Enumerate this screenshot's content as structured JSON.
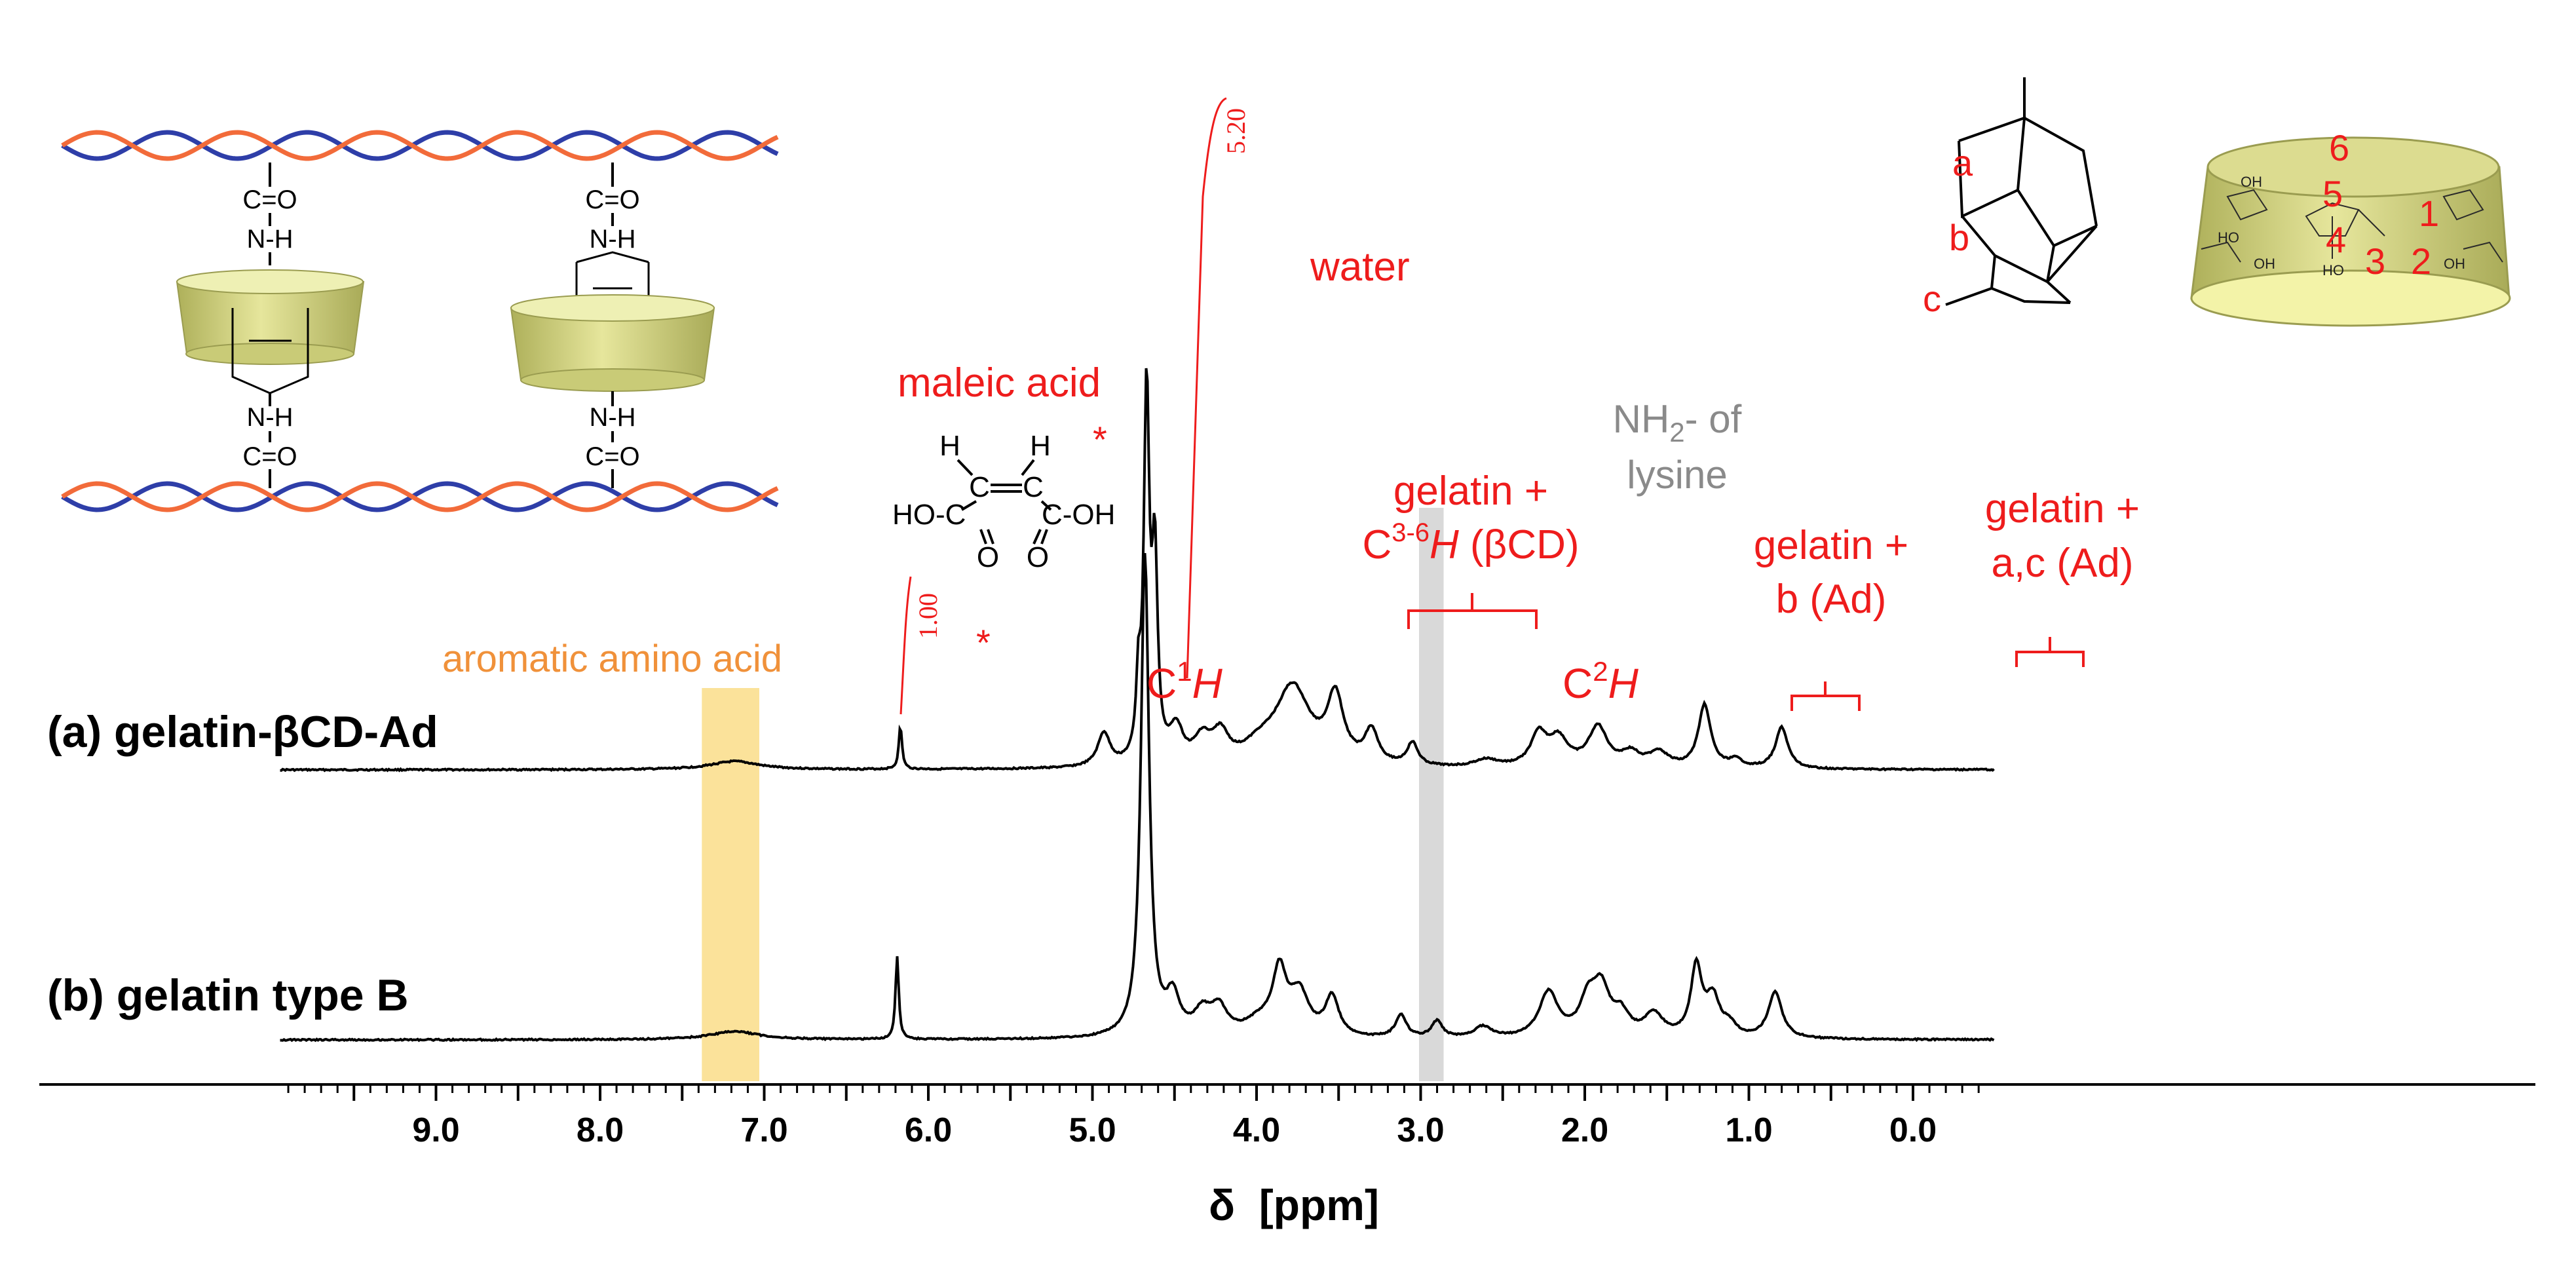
{
  "colors": {
    "spectrum": "#000000",
    "annotation": "#ee1c1c",
    "aromatic_label": "#f0913a",
    "aromatic_band": "#fbe29a",
    "lysine_band": "#d9d9d9",
    "lysine_label": "#8a8a8a",
    "strand_blue": "#2e3ea8",
    "strand_orange": "#f26b3a",
    "cyclodextrin": "#d8d884"
  },
  "chart_data": {
    "type": "line",
    "title": "",
    "xlabel": "δ  [ppm]",
    "ylabel": "",
    "xlim": [
      9.95,
      -0.5
    ],
    "x_reversed": true,
    "grid": false,
    "legend": "none",
    "tick_labels": [
      "9.0",
      "8.0",
      "7.0",
      "6.0",
      "5.0",
      "4.0",
      "3.0",
      "2.0",
      "1.0",
      "0.0"
    ],
    "tick_values": [
      9.0,
      8.0,
      7.0,
      6.0,
      5.0,
      4.0,
      3.0,
      2.0,
      1.0,
      0.0
    ],
    "series": [
      {
        "name": "(a) gelatin-βCD-Ad",
        "baseline_offset": 1,
        "peaks": [
          {
            "ppm": 7.18,
            "height": 0.11,
            "width": 0.18
          },
          {
            "ppm": 6.17,
            "height": 0.57,
            "width": 0.012
          },
          {
            "ppm": 4.93,
            "height": 0.44,
            "width": 0.045
          },
          {
            "ppm": 4.72,
            "height": 0.92,
            "width": 0.015
          },
          {
            "ppm": 4.67,
            "height": 4.9,
            "width": 0.02
          },
          {
            "ppm": 4.62,
            "height": 2.6,
            "width": 0.02
          },
          {
            "ppm": 4.49,
            "height": 0.46,
            "width": 0.05
          },
          {
            "ppm": 4.33,
            "height": 0.32,
            "width": 0.06
          },
          {
            "ppm": 4.22,
            "height": 0.38,
            "width": 0.06
          },
          {
            "ppm": 3.98,
            "height": 0.2,
            "width": 0.12
          },
          {
            "ppm": 3.78,
            "height": 1.04,
            "width": 0.13
          },
          {
            "ppm": 3.52,
            "height": 0.86,
            "width": 0.06
          },
          {
            "ppm": 3.3,
            "height": 0.44,
            "width": 0.05
          },
          {
            "ppm": 3.05,
            "height": 0.3,
            "width": 0.04
          },
          {
            "ppm": 2.6,
            "height": 0.1,
            "width": 0.09
          },
          {
            "ppm": 2.28,
            "height": 0.42,
            "width": 0.06
          },
          {
            "ppm": 2.16,
            "height": 0.36,
            "width": 0.07
          },
          {
            "ppm": 1.92,
            "height": 0.53,
            "width": 0.07
          },
          {
            "ppm": 1.72,
            "height": 0.18,
            "width": 0.07
          },
          {
            "ppm": 1.55,
            "height": 0.2,
            "width": 0.07
          },
          {
            "ppm": 1.27,
            "height": 0.84,
            "width": 0.045
          },
          {
            "ppm": 1.08,
            "height": 0.1,
            "width": 0.05
          },
          {
            "ppm": 0.8,
            "height": 0.55,
            "width": 0.045
          }
        ]
      },
      {
        "name": "(b) gelatin type B",
        "baseline_offset": 0,
        "peaks": [
          {
            "ppm": 7.18,
            "height": 0.11,
            "width": 0.18
          },
          {
            "ppm": 6.19,
            "height": 1.1,
            "width": 0.012
          },
          {
            "ppm": 4.68,
            "height": 6.4,
            "width": 0.03
          },
          {
            "ppm": 4.51,
            "height": 0.5,
            "width": 0.05
          },
          {
            "ppm": 4.33,
            "height": 0.3,
            "width": 0.06
          },
          {
            "ppm": 4.23,
            "height": 0.35,
            "width": 0.06
          },
          {
            "ppm": 3.98,
            "height": 0.2,
            "width": 0.12
          },
          {
            "ppm": 3.86,
            "height": 0.8,
            "width": 0.05
          },
          {
            "ppm": 3.74,
            "height": 0.55,
            "width": 0.07
          },
          {
            "ppm": 3.54,
            "height": 0.52,
            "width": 0.05
          },
          {
            "ppm": 3.12,
            "height": 0.3,
            "width": 0.04
          },
          {
            "ppm": 2.9,
            "height": 0.22,
            "width": 0.04
          },
          {
            "ppm": 2.62,
            "height": 0.15,
            "width": 0.06
          },
          {
            "ppm": 2.22,
            "height": 0.6,
            "width": 0.07
          },
          {
            "ppm": 1.98,
            "height": 0.45,
            "width": 0.06
          },
          {
            "ppm": 1.9,
            "height": 0.6,
            "width": 0.06
          },
          {
            "ppm": 1.78,
            "height": 0.28,
            "width": 0.06
          },
          {
            "ppm": 1.58,
            "height": 0.3,
            "width": 0.07
          },
          {
            "ppm": 1.32,
            "height": 0.92,
            "width": 0.04
          },
          {
            "ppm": 1.22,
            "height": 0.5,
            "width": 0.05
          },
          {
            "ppm": 1.12,
            "height": 0.15,
            "width": 0.05
          },
          {
            "ppm": 0.84,
            "height": 0.62,
            "width": 0.05
          }
        ]
      }
    ],
    "highlight_regions": [
      {
        "name": "aromatic amino acid",
        "ppm_range": [
          7.03,
          7.38
        ]
      },
      {
        "name": "NH2- of lysine",
        "ppm_range": [
          2.86,
          3.01
        ]
      }
    ],
    "integrals": [
      {
        "label": "1.00",
        "ppm": 6.18
      },
      {
        "label": "5.20",
        "ppm": 4.78
      }
    ],
    "annotations": {
      "water": "water",
      "maleic_acid": "maleic acid",
      "aromatic": "aromatic amino acid",
      "lysine_prefix": "NH",
      "lysine_sub": "2",
      "lysine_suffix": "- of",
      "lysine_line2": "lysine",
      "c1h_prefix": "C",
      "c1h_sup": "1",
      "c1h_suffix": "H",
      "c2h_prefix": "C",
      "c2h_sup": "2",
      "c2h_suffix": "H",
      "gel_bcd_line1": "gelatin +",
      "gel_bcd_c": "C",
      "gel_bcd_sup": "3-6",
      "gel_bcd_h": "H",
      "gel_bcd_rest": " (βCD)",
      "gel_b_line1": "gelatin +",
      "gel_b_line2": "b (Ad)",
      "gel_ac_line1": "gelatin +",
      "gel_ac_line2": "a,c (Ad)",
      "asterisk": "*"
    }
  },
  "schematic": {
    "amide_top": "C=O",
    "amine_top": "N-H",
    "amine_bottom": "N-H",
    "amide_bottom": "C=O"
  },
  "maleic_structure": {
    "h_left": "H",
    "h_right": "H",
    "c_left": "C",
    "c_right": "C",
    "acid_left": "HO-C",
    "acid_right": "C-OH",
    "o_left": "O",
    "o_right": "O"
  },
  "adamantane_labels": [
    "a",
    "b",
    "c"
  ],
  "cd_numbers": [
    "6",
    "5",
    "1",
    "4",
    "3",
    "2"
  ],
  "cd_oh": "OH",
  "cd_ho": "HO"
}
